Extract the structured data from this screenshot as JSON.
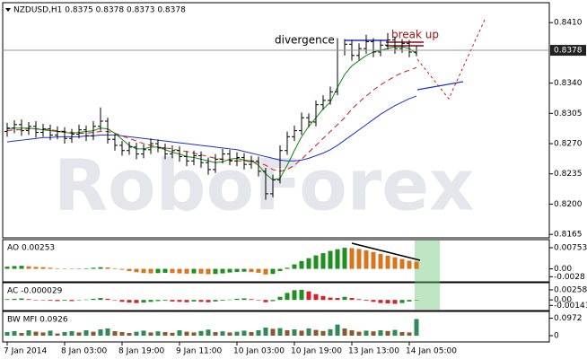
{
  "chart_data": [
    {
      "type": "ohlc",
      "title": "NZDUSD,H1  0.8375 0.8378 0.8373 0.8378",
      "watermark": "RoboForex",
      "annotations": [
        "divergence",
        "break up"
      ],
      "categories": [
        "7 Jan 2014",
        null,
        null,
        null,
        null,
        null,
        null,
        null,
        "8 Jan 03:00",
        null,
        null,
        null,
        null,
        null,
        null,
        null,
        "8 Jan 19:00",
        null,
        null,
        null,
        null,
        null,
        null,
        null,
        "9 Jan 11:00",
        null,
        null,
        null,
        null,
        null,
        null,
        null,
        "10 Jan 03:00",
        null,
        null,
        null,
        null,
        null,
        null,
        null,
        "10 Jan 19:00",
        null,
        null,
        null,
        null,
        null,
        null,
        null,
        "13 Jan 13:00",
        null,
        null,
        null,
        null,
        null,
        null,
        null,
        "14 Jan 05:00",
        null
      ],
      "open": [
        0.8284,
        0.8288,
        0.8292,
        0.8285,
        0.829,
        0.8283,
        0.8287,
        0.828,
        0.8284,
        0.8276,
        0.8281,
        0.8286,
        0.8279,
        0.829,
        0.8296,
        0.8275,
        0.8268,
        0.8262,
        0.8266,
        0.8258,
        0.8263,
        0.827,
        0.8265,
        0.8258,
        0.8262,
        0.8255,
        0.825,
        0.8256,
        0.8248,
        0.824,
        0.8252,
        0.8258,
        0.825,
        0.8254,
        0.8246,
        0.825,
        0.8238,
        0.8212,
        0.8228,
        0.8262,
        0.8278,
        0.8285,
        0.83,
        0.8295,
        0.8315,
        0.832,
        0.833,
        0.8378,
        0.8385,
        0.8372,
        0.838,
        0.8388,
        0.8376,
        0.8384,
        0.839,
        0.838,
        0.8386,
        0.8376
      ],
      "high": [
        0.8294,
        0.8297,
        0.8298,
        0.8295,
        0.8296,
        0.8293,
        0.8292,
        0.829,
        0.8289,
        0.8287,
        0.8292,
        0.8291,
        0.8296,
        0.8312,
        0.83,
        0.8281,
        0.8273,
        0.8272,
        0.8271,
        0.8269,
        0.8276,
        0.8275,
        0.827,
        0.8268,
        0.8267,
        0.8261,
        0.8262,
        0.8261,
        0.8254,
        0.8258,
        0.8264,
        0.8263,
        0.826,
        0.8259,
        0.8256,
        0.8255,
        0.8242,
        0.8234,
        0.8268,
        0.8284,
        0.8291,
        0.8306,
        0.8305,
        0.832,
        0.8326,
        0.8336,
        0.8392,
        0.8391,
        0.839,
        0.8386,
        0.8396,
        0.8392,
        0.839,
        0.8398,
        0.8394,
        0.8391,
        0.839,
        0.8383
      ],
      "low": [
        0.8278,
        0.8282,
        0.8279,
        0.828,
        0.8277,
        0.8278,
        0.8274,
        0.8275,
        0.827,
        0.8271,
        0.8276,
        0.8273,
        0.8274,
        0.8285,
        0.827,
        0.8262,
        0.8256,
        0.8257,
        0.8252,
        0.8253,
        0.8258,
        0.826,
        0.8252,
        0.8253,
        0.8249,
        0.8244,
        0.8245,
        0.8242,
        0.8234,
        0.8236,
        0.8247,
        0.8245,
        0.8244,
        0.824,
        0.8241,
        0.8232,
        0.8205,
        0.8208,
        0.8224,
        0.8257,
        0.8273,
        0.828,
        0.8289,
        0.829,
        0.8309,
        0.8315,
        0.8326,
        0.8372,
        0.8366,
        0.8367,
        0.8374,
        0.837,
        0.8371,
        0.8379,
        0.8374,
        0.8375,
        0.837,
        0.8371
      ],
      "close": [
        0.8288,
        0.8292,
        0.8285,
        0.829,
        0.8283,
        0.8287,
        0.828,
        0.8284,
        0.8276,
        0.8281,
        0.8286,
        0.8279,
        0.829,
        0.8296,
        0.8275,
        0.8268,
        0.8262,
        0.8266,
        0.8258,
        0.8263,
        0.827,
        0.8265,
        0.8258,
        0.8262,
        0.8255,
        0.825,
        0.8256,
        0.8248,
        0.824,
        0.8252,
        0.8258,
        0.825,
        0.8254,
        0.8246,
        0.825,
        0.8238,
        0.8212,
        0.8228,
        0.8262,
        0.8278,
        0.8285,
        0.83,
        0.8295,
        0.8315,
        0.832,
        0.833,
        0.8378,
        0.8385,
        0.8372,
        0.838,
        0.8388,
        0.8376,
        0.8384,
        0.839,
        0.838,
        0.8386,
        0.8376,
        0.8378
      ],
      "bar_color": "#000000",
      "lines": [
        {
          "color": "#1a2fd0",
          "dashed": false,
          "values": [
            0.8272,
            0.8273,
            0.8274,
            0.8275,
            0.8276,
            0.8277,
            0.8277,
            0.8278,
            0.8278,
            0.8278,
            0.8278,
            0.8279,
            0.8279,
            0.828,
            0.828,
            0.828,
            0.8279,
            0.8278,
            0.8277,
            0.8276,
            0.8275,
            0.8274,
            0.8273,
            0.8272,
            0.8271,
            0.827,
            0.8269,
            0.8268,
            0.8267,
            0.8266,
            0.8265,
            0.8264,
            0.8263,
            0.8261,
            0.8259,
            0.8257,
            0.8255,
            0.8253,
            0.8251,
            0.825,
            0.825,
            0.8251,
            0.8253,
            0.8256,
            0.8259,
            0.8263,
            0.8268,
            0.8274,
            0.828,
            0.8286,
            0.8292,
            0.8298,
            0.8304,
            0.8309,
            0.8314,
            0.8318,
            0.8322,
            0.8325
          ]
        },
        {
          "color": "#d01818",
          "dashed": true,
          "values": [
            0.8285,
            0.8286,
            0.8286,
            0.8287,
            0.8287,
            0.8287,
            0.8286,
            0.8285,
            0.8284,
            0.8283,
            0.8282,
            0.8282,
            0.8283,
            0.8284,
            0.8284,
            0.8282,
            0.8279,
            0.8276,
            0.8273,
            0.827,
            0.8268,
            0.8266,
            0.8265,
            0.8264,
            0.8262,
            0.8261,
            0.8259,
            0.8257,
            0.8255,
            0.8253,
            0.8252,
            0.8251,
            0.825,
            0.825,
            0.8249,
            0.8248,
            0.8245,
            0.824,
            0.8238,
            0.824,
            0.8245,
            0.8252,
            0.826,
            0.8268,
            0.8276,
            0.8284,
            0.8292,
            0.83,
            0.831,
            0.8318,
            0.8325,
            0.8332,
            0.8338,
            0.8343,
            0.8348,
            0.8352,
            0.8355,
            0.8358
          ]
        },
        {
          "color": "#0a8a0a",
          "dashed": false,
          "values": [
            0.8287,
            0.8288,
            0.8288,
            0.8288,
            0.8287,
            0.8286,
            0.8285,
            0.8284,
            0.8283,
            0.8282,
            0.8283,
            0.8284,
            0.8285,
            0.8288,
            0.8287,
            0.8282,
            0.8275,
            0.8268,
            0.8264,
            0.8264,
            0.8266,
            0.8266,
            0.8263,
            0.826,
            0.8258,
            0.8255,
            0.8254,
            0.8252,
            0.825,
            0.8248,
            0.8249,
            0.8252,
            0.8253,
            0.8251,
            0.825,
            0.8245,
            0.8235,
            0.8228,
            0.823,
            0.8245,
            0.8262,
            0.8278,
            0.829,
            0.83,
            0.831,
            0.8318,
            0.8335,
            0.835,
            0.836,
            0.8366,
            0.8372,
            0.8376,
            0.8378,
            0.838,
            0.8382,
            0.8382,
            0.838,
            0.8374
          ]
        }
      ],
      "last_price": 0.8378,
      "ylim": [
        0.8161,
        0.8431
      ],
      "yticks": [
        0.8165,
        {
          "value": 0.82,
          "label": "0.8200"
        },
        0.8235,
        {
          "value": 0.827,
          "label": "0.8270"
        },
        0.8305,
        {
          "value": 0.834,
          "label": "0.8340"
        },
        {
          "value": 0.841,
          "label": "0.8410"
        }
      ]
    },
    {
      "type": "histogram",
      "title": "AO 0.00253",
      "up_color": "#1f8f1f",
      "down_color": "#d9741c",
      "values": [
        0.0008,
        0.001,
        0.0011,
        0.0009,
        0.0007,
        0.0006,
        0.0004,
        0.0002,
        0.0001,
        -0.0001,
        0.0,
        0.0002,
        0.0004,
        0.0006,
        0.0005,
        0.0002,
        -0.0003,
        -0.0008,
        -0.0012,
        -0.0015,
        -0.0016,
        -0.0015,
        -0.0014,
        -0.0015,
        -0.0016,
        -0.0017,
        -0.0016,
        -0.0017,
        -0.0019,
        -0.0018,
        -0.0016,
        -0.0013,
        -0.0011,
        -0.001,
        -0.0011,
        -0.0014,
        -0.002,
        -0.0018,
        -0.0008,
        0.0004,
        0.0016,
        0.0028,
        0.0038,
        0.0048,
        0.0056,
        0.0064,
        0.007,
        0.0075,
        0.0074,
        0.0071,
        0.0066,
        0.006,
        0.0053,
        0.0047,
        0.0041,
        0.0035,
        0.0029,
        0.00253
      ],
      "ylim": [
        -0.0043,
        0.0101
      ],
      "yticks": [
        0.00753,
        {
          "value": 0,
          "label": "0.00"
        },
        -0.0028
      ]
    },
    {
      "type": "histogram",
      "title": "AC -0.000029",
      "up_color": "#1f8f1f",
      "down_color": "#d8202a",
      "values": [
        0.0002,
        0.0003,
        0.0004,
        0.0002,
        0.0,
        -0.0001,
        -0.0002,
        -0.0003,
        -0.0002,
        -0.0003,
        -0.0001,
        0.0001,
        0.0003,
        0.0005,
        0.0003,
        -0.0001,
        -0.0005,
        -0.0007,
        -0.0008,
        -0.0007,
        -0.0005,
        -0.0003,
        -0.0002,
        -0.0004,
        -0.0005,
        -0.0006,
        -0.0004,
        -0.0005,
        -0.0006,
        -0.0004,
        -0.0002,
        0.0001,
        0.0003,
        0.0004,
        0.0002,
        -0.0001,
        -0.0006,
        -0.0003,
        0.0008,
        0.0018,
        0.0025,
        0.0026,
        0.0022,
        0.0015,
        0.001,
        0.0006,
        0.0005,
        0.0008,
        0.0005,
        0.0002,
        -0.0002,
        -0.0005,
        -0.0008,
        -0.0009,
        -0.001,
        -0.0008,
        -0.0004,
        -2.9e-05
      ],
      "ylim": [
        -0.0025,
        0.0042
      ],
      "yticks": [
        0.002588,
        {
          "value": 0,
          "label": "0.00"
        },
        -0.00141
      ]
    },
    {
      "type": "histogram",
      "title": "BW MFI 0.0926",
      "up_color": "#2e8b57",
      "down_color": "#8b5a2b",
      "values": [
        0.02,
        0.025,
        0.015,
        0.03,
        0.022,
        0.018,
        0.028,
        0.012,
        0.02,
        0.025,
        0.018,
        0.03,
        0.022,
        0.035,
        0.04,
        0.025,
        0.02,
        0.015,
        0.022,
        0.028,
        0.018,
        0.024,
        0.02,
        0.016,
        0.03,
        0.022,
        0.018,
        0.026,
        0.034,
        0.02,
        0.024,
        0.018,
        0.022,
        0.028,
        0.02,
        0.03,
        0.045,
        0.038,
        0.042,
        0.03,
        0.035,
        0.028,
        0.04,
        0.032,
        0.026,
        0.036,
        0.062,
        0.04,
        0.03,
        0.022,
        0.028,
        0.024,
        0.03,
        0.026,
        0.032,
        0.02,
        0.018,
        0.0926
      ],
      "ylim": [
        -0.03,
        0.13
      ],
      "yticks": [
        0.0972,
        0
      ]
    }
  ]
}
